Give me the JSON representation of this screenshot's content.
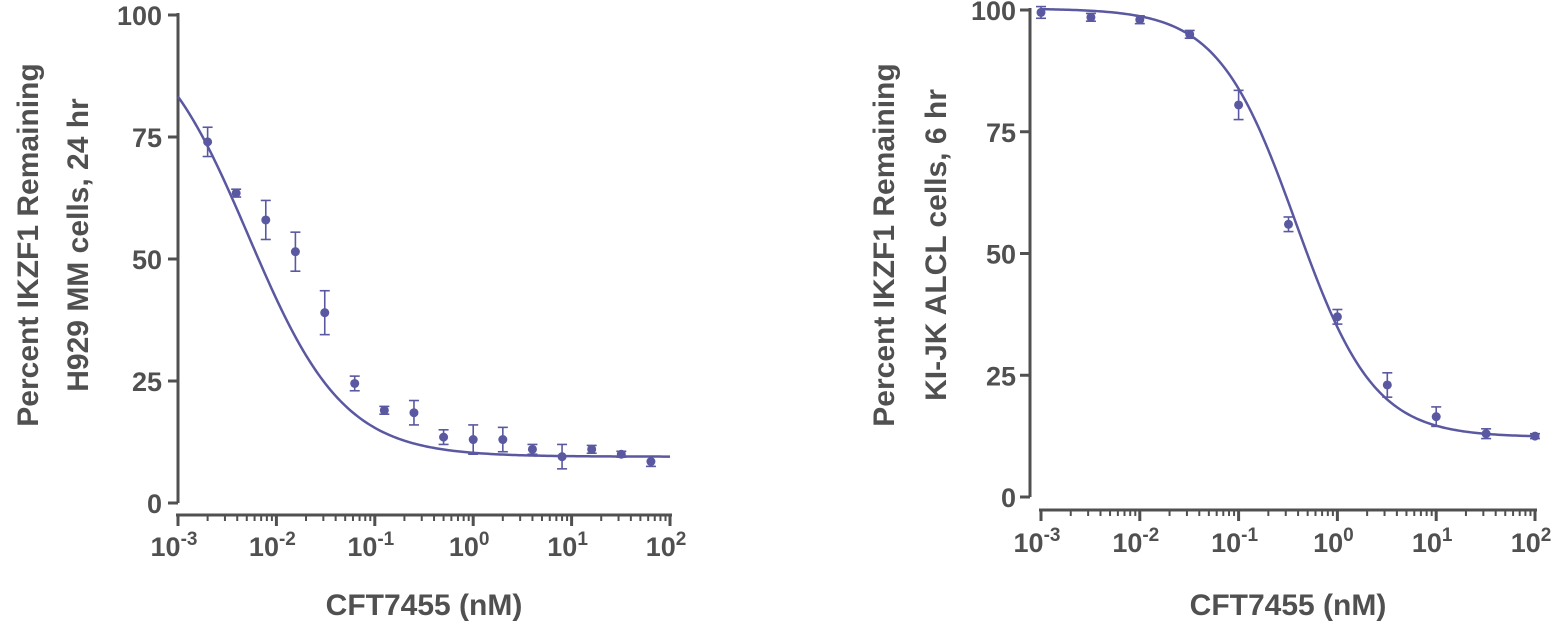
{
  "colors": {
    "series": "#5a58a0",
    "axis": "#505050"
  },
  "chart_data": [
    {
      "type": "scatter",
      "xscale": "log",
      "xlim": [
        0.001,
        100
      ],
      "ylim": [
        0,
        100
      ],
      "xticks": [
        {
          "value": 0.001,
          "base": "10",
          "exp": "-3"
        },
        {
          "value": 0.01,
          "base": "10",
          "exp": "-2"
        },
        {
          "value": 0.1,
          "base": "10",
          "exp": "-1"
        },
        {
          "value": 1,
          "base": "10",
          "exp": "0"
        },
        {
          "value": 10,
          "base": "10",
          "exp": "1"
        },
        {
          "value": 100,
          "base": "10",
          "exp": "2"
        }
      ],
      "yticks": [
        "0",
        "25",
        "50",
        "75",
        "100"
      ],
      "xlabel": "CFT7455 (nM)",
      "ylabel_lines": [
        "Percent IKZF1 Remaining",
        "H929 MM cells, 24 hr"
      ],
      "points": [
        {
          "x": 0.002,
          "y": 74,
          "err": 3
        },
        {
          "x": 0.0039,
          "y": 63.5,
          "err": 0.8
        },
        {
          "x": 0.0078,
          "y": 58,
          "err": 4
        },
        {
          "x": 0.0156,
          "y": 51.5,
          "err": 4
        },
        {
          "x": 0.031,
          "y": 39,
          "err": 4.5
        },
        {
          "x": 0.0625,
          "y": 24.5,
          "err": 1.5
        },
        {
          "x": 0.125,
          "y": 19,
          "err": 0.8
        },
        {
          "x": 0.25,
          "y": 18.5,
          "err": 2.5
        },
        {
          "x": 0.5,
          "y": 13.5,
          "err": 1.5
        },
        {
          "x": 1,
          "y": 13,
          "err": 3
        },
        {
          "x": 2,
          "y": 13,
          "err": 2.5
        },
        {
          "x": 4,
          "y": 11,
          "err": 1
        },
        {
          "x": 8,
          "y": 9.5,
          "err": 2.5
        },
        {
          "x": 16,
          "y": 11,
          "err": 0.8
        },
        {
          "x": 32,
          "y": 10,
          "err": 0.6
        },
        {
          "x": 64,
          "y": 8.5,
          "err": 1
        }
      ],
      "fit": {
        "bottom": 9.5,
        "top": 100,
        "ec50": 0.0052,
        "hill": 0.9
      }
    },
    {
      "type": "scatter",
      "xscale": "log",
      "xlim": [
        0.001,
        100
      ],
      "ylim": [
        0,
        100
      ],
      "xticks": [
        {
          "value": 0.001,
          "base": "10",
          "exp": "-3"
        },
        {
          "value": 0.01,
          "base": "10",
          "exp": "-2"
        },
        {
          "value": 0.1,
          "base": "10",
          "exp": "-1"
        },
        {
          "value": 1,
          "base": "10",
          "exp": "0"
        },
        {
          "value": 10,
          "base": "10",
          "exp": "1"
        },
        {
          "value": 100,
          "base": "10",
          "exp": "2"
        }
      ],
      "yticks": [
        "0",
        "25",
        "50",
        "75",
        "100"
      ],
      "xlabel": "CFT7455 (nM)",
      "ylabel_lines": [
        "Percent IKZF1 Remaining",
        "KI-JK ALCL cells, 6 hr"
      ],
      "points": [
        {
          "x": 0.001,
          "y": 99.5,
          "err": 1.2
        },
        {
          "x": 0.0032,
          "y": 98.5,
          "err": 0.8
        },
        {
          "x": 0.01,
          "y": 98,
          "err": 0.8
        },
        {
          "x": 0.032,
          "y": 95,
          "err": 0.8
        },
        {
          "x": 0.1,
          "y": 80.5,
          "err": 3
        },
        {
          "x": 0.32,
          "y": 56,
          "err": 1.5
        },
        {
          "x": 1,
          "y": 37,
          "err": 1.5
        },
        {
          "x": 3.2,
          "y": 23,
          "err": 2.5
        },
        {
          "x": 10,
          "y": 16.5,
          "err": 2
        },
        {
          "x": 32,
          "y": 13,
          "err": 1
        },
        {
          "x": 100,
          "y": 12.5,
          "err": 0.5
        }
      ],
      "fit": {
        "bottom": 12.3,
        "top": 100.3,
        "ec50": 0.38,
        "hill": 1.1
      }
    }
  ]
}
